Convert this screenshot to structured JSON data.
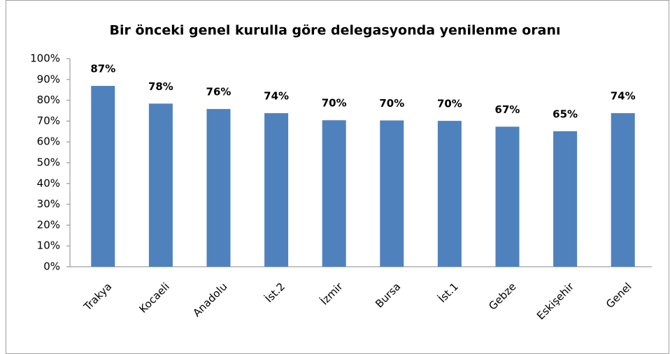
{
  "chart_data": {
    "type": "bar",
    "title": "Bir önceki genel kurulla göre delegasyonda yenilenme oranı",
    "categories": [
      "Trakya",
      "Kocaeli",
      "Anadolu",
      "İst.2",
      "İzmir",
      "Bursa",
      "İst.1",
      "Gebze",
      "Eskişehir",
      "Genel"
    ],
    "values": [
      86.9,
      78.4,
      75.8,
      73.8,
      70.4,
      70.3,
      70.1,
      67.3,
      65.1,
      73.8
    ],
    "value_labels": [
      "87%",
      "78%",
      "76%",
      "74%",
      "70%",
      "70%",
      "70%",
      "67%",
      "65%",
      "74%"
    ],
    "color": "#4f81bd",
    "ylim": [
      0,
      100
    ],
    "yticks": [
      {
        "value": 0,
        "label": "0%"
      },
      {
        "value": 10,
        "label": "10%"
      },
      {
        "value": 20,
        "label": "20%"
      },
      {
        "value": 30,
        "label": "30%"
      },
      {
        "value": 40,
        "label": "40%"
      },
      {
        "value": 50,
        "label": "50%"
      },
      {
        "value": 60,
        "label": "60%"
      },
      {
        "value": 70,
        "label": "70%"
      },
      {
        "value": 80,
        "label": "80%"
      },
      {
        "value": 90,
        "label": "90%"
      },
      {
        "value": 100,
        "label": "100%"
      }
    ],
    "grid": false
  }
}
